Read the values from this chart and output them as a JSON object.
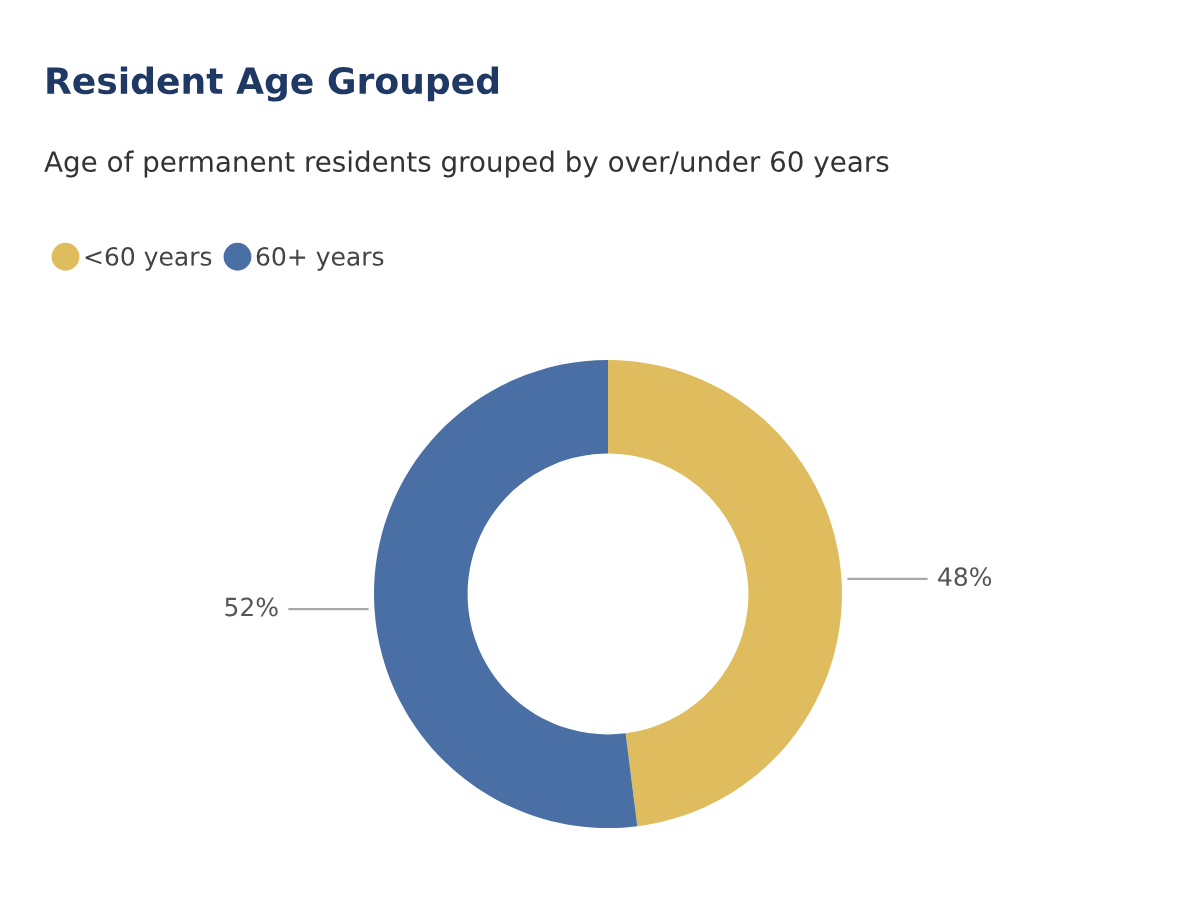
{
  "chart_data": {
    "type": "donut",
    "title": "Resident Age Grouped",
    "subtitle": "Age of permanent residents grouped by over/under 60 years",
    "categories": [
      "<60 years",
      "60+ years"
    ],
    "values": [
      48,
      52
    ],
    "value_labels": [
      "48%",
      "52%"
    ],
    "colors": [
      "#dfbd5e",
      "#4a6fa5"
    ],
    "legend": "top left"
  }
}
